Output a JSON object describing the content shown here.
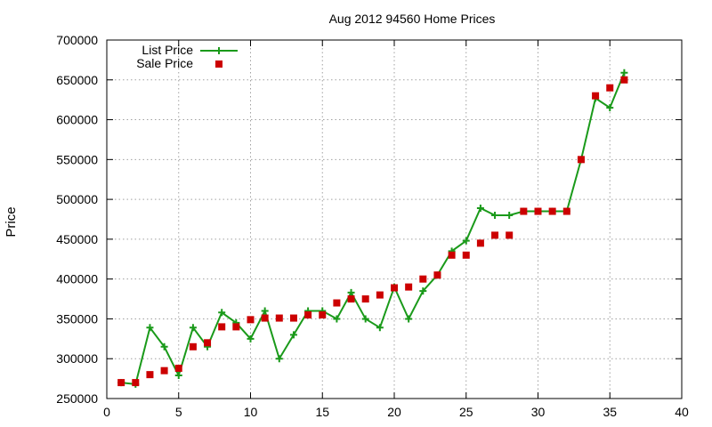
{
  "chart_data": {
    "type": "line",
    "title": "Aug 2012 94560 Home Prices",
    "xlabel": "",
    "ylabel": "Price",
    "xlim": [
      0,
      40
    ],
    "ylim": [
      250000,
      700000
    ],
    "xticks": [
      0,
      5,
      10,
      15,
      20,
      25,
      30,
      35,
      40
    ],
    "yticks": [
      250000,
      300000,
      350000,
      400000,
      450000,
      500000,
      550000,
      600000,
      650000,
      700000
    ],
    "grid": true,
    "legend_position": "top-left",
    "series": [
      {
        "name": "List Price",
        "style": "line-with-plus-markers",
        "color": "#1a9a1a",
        "x": [
          1,
          2,
          3,
          4,
          5,
          6,
          7,
          8,
          9,
          10,
          11,
          12,
          13,
          14,
          15,
          16,
          17,
          18,
          19,
          20,
          21,
          22,
          23,
          24,
          25,
          26,
          27,
          28,
          29,
          30,
          31,
          32,
          33,
          34,
          35,
          36
        ],
        "y": [
          270000,
          268000,
          339000,
          315000,
          279000,
          339000,
          315000,
          358000,
          345000,
          325000,
          360000,
          300000,
          330000,
          360000,
          360000,
          350000,
          383000,
          350000,
          339000,
          390000,
          350000,
          385000,
          405000,
          435000,
          448000,
          489000,
          480000,
          480000,
          485000,
          485000,
          485000,
          485000,
          550000,
          627000,
          615000,
          659000
        ]
      },
      {
        "name": "Sale Price",
        "style": "square-points",
        "color": "#cc0000",
        "x": [
          1,
          2,
          3,
          4,
          5,
          6,
          7,
          8,
          9,
          10,
          11,
          12,
          13,
          14,
          15,
          16,
          17,
          18,
          19,
          20,
          21,
          22,
          23,
          24,
          25,
          26,
          27,
          28,
          29,
          30,
          31,
          32,
          33,
          34,
          35,
          36
        ],
        "y": [
          270000,
          270000,
          280000,
          285000,
          288000,
          315000,
          320000,
          340000,
          340000,
          349000,
          351000,
          351000,
          351000,
          355000,
          355000,
          370000,
          375000,
          375000,
          380000,
          389000,
          390000,
          400000,
          405000,
          430000,
          430000,
          445000,
          455000,
          455000,
          485000,
          485000,
          485000,
          485000,
          550000,
          630000,
          640000,
          650000
        ]
      }
    ]
  }
}
